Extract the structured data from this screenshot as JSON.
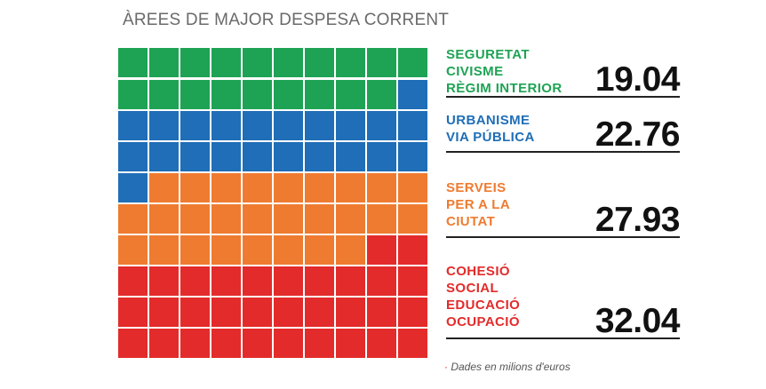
{
  "chart_data": {
    "type": "waffle",
    "title": "ÀREES DE MAJOR DESPESA CORRENT",
    "grid": {
      "columns": 10,
      "rows": 10
    },
    "series": [
      {
        "name": "SEGURETAT\nCIVISME\nRÈGIM INTERIOR",
        "value_label": "19.04",
        "value": 19.04,
        "cells": 19,
        "color": "#1ea354"
      },
      {
        "name": "URBANISME\nVIA PÚBLICA",
        "value_label": "22.76",
        "value": 22.76,
        "cells": 22,
        "color": "#1f6eb7"
      },
      {
        "name": "SERVEIS\nPER A LA\nCIUTAT",
        "value_label": "27.93",
        "value": 27.93,
        "cells": 27,
        "color": "#ef7b30"
      },
      {
        "name": "COHESIÓ\nSOCIAL\nEDUCACIÓ\nOCUPACIÓ",
        "value_label": "32.04",
        "value": 32.04,
        "cells": 32,
        "color": "#e32b2b"
      }
    ],
    "footnote_marker": "·",
    "footnote": "Dades en milions d'euros"
  }
}
